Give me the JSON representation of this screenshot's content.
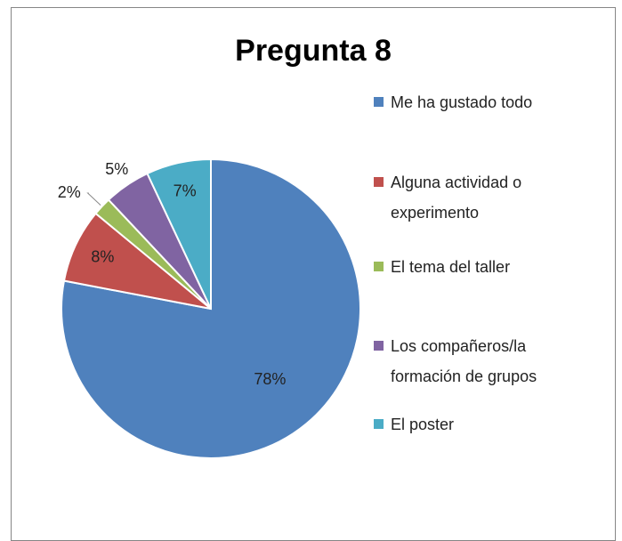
{
  "chart_data": {
    "type": "pie",
    "title": "Pregunta 8",
    "categories": [
      "Me ha gustado todo",
      "Alguna actividad o experimento",
      "El tema del taller",
      "Los compañeros/la formación de grupos",
      "El poster"
    ],
    "values": [
      78,
      8,
      2,
      5,
      7
    ],
    "value_labels": [
      "78%",
      "8%",
      "2%",
      "5%",
      "7%"
    ],
    "colors": [
      "#4f81bd",
      "#c0504d",
      "#9bbb59",
      "#8064a2",
      "#4bacc6"
    ],
    "legend": "right"
  }
}
